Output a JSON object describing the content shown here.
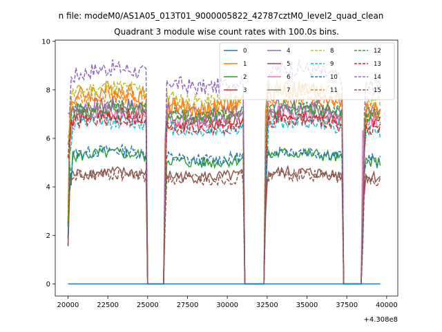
{
  "chart_data": {
    "type": "line",
    "suptitle": "n file: modeM0/AS1A05_013T01_9000005822_42787cztM0_level2_quad_clean",
    "title": "Quadrant 3 module wise count rates with 100.0s bins.",
    "xlabel": "",
    "ylabel": "",
    "x_offset_label": "+4.308e8",
    "xlim": [
      19200,
      40700
    ],
    "ylim": [
      -0.5,
      10.05
    ],
    "x_ticks": [
      20000,
      22500,
      25000,
      27500,
      30000,
      32500,
      35000,
      37500,
      40000
    ],
    "x_tick_labels": [
      "20000",
      "22500",
      "25000",
      "27500",
      "30000",
      "32500",
      "35000",
      "37500",
      "40000"
    ],
    "y_ticks": [
      0,
      2,
      4,
      6,
      8,
      10
    ],
    "y_tick_labels": [
      "0",
      "2",
      "4",
      "6",
      "8",
      "10"
    ],
    "grid": false,
    "legend_placement": "top-right",
    "legend_columns": 4,
    "x_start": 20000,
    "x_end": 39600,
    "bin_width": 100,
    "gaps": [
      [
        24950,
        26050
      ],
      [
        31050,
        32350
      ],
      [
        37200,
        38500
      ]
    ],
    "series": [
      {
        "name": "0",
        "color": "#1f77b4",
        "dash": "solid",
        "level": 0.0,
        "noise": 0.0,
        "peak": 0.0
      },
      {
        "name": "1",
        "color": "#ff7f0e",
        "dash": "solid",
        "level": 7.6,
        "noise": 0.4,
        "peak": 0.4
      },
      {
        "name": "2",
        "color": "#2ca02c",
        "dash": "solid",
        "level": 5.2,
        "noise": 0.25,
        "peak": 0.2
      },
      {
        "name": "3",
        "color": "#d62728",
        "dash": "solid",
        "level": 6.8,
        "noise": 0.3,
        "peak": 0.2
      },
      {
        "name": "4",
        "color": "#9467bd",
        "dash": "solid",
        "level": 7.2,
        "noise": 0.3,
        "peak": 0.2
      },
      {
        "name": "5",
        "color": "#8c564b",
        "dash": "solid",
        "level": 4.5,
        "noise": 0.25,
        "peak": 0.1
      },
      {
        "name": "6",
        "color": "#e377c2",
        "dash": "solid",
        "level": 6.9,
        "noise": 0.3,
        "peak": 0.2
      },
      {
        "name": "7",
        "color": "#7f7f7f",
        "dash": "solid",
        "level": 7.0,
        "noise": 0.3,
        "peak": 0.2
      },
      {
        "name": "8",
        "color": "#bcbd22",
        "dash": "dashed",
        "level": 7.8,
        "noise": 0.35,
        "peak": 0.3
      },
      {
        "name": "9",
        "color": "#17becf",
        "dash": "dashed",
        "level": 6.5,
        "noise": 0.3,
        "peak": 0.2
      },
      {
        "name": "10",
        "color": "#1f77b4",
        "dash": "dashed",
        "level": 5.3,
        "noise": 0.25,
        "peak": 0.2
      },
      {
        "name": "11",
        "color": "#ff7f0e",
        "dash": "dashed",
        "level": 7.4,
        "noise": 0.35,
        "peak": 0.3
      },
      {
        "name": "12",
        "color": "#2ca02c",
        "dash": "dashed",
        "level": 7.1,
        "noise": 0.3,
        "peak": 0.2
      },
      {
        "name": "13",
        "color": "#d62728",
        "dash": "dashed",
        "level": 6.6,
        "noise": 0.3,
        "peak": 0.2
      },
      {
        "name": "14",
        "color": "#9467bd",
        "dash": "dashed",
        "level": 8.5,
        "noise": 0.35,
        "peak": 0.4
      },
      {
        "name": "15",
        "color": "#8c564b",
        "dash": "dashed",
        "level": 4.4,
        "noise": 0.25,
        "peak": 0.1
      }
    ]
  }
}
